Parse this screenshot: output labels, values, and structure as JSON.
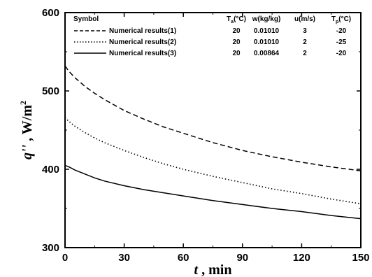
{
  "chart_data": {
    "type": "line",
    "xlabel": {
      "symbol": "t",
      "unit": " , min"
    },
    "ylabel": {
      "symbol": "q''",
      "unit": " , W/m",
      "sup": "2"
    },
    "xlim": [
      0,
      150
    ],
    "ylim": [
      300,
      600
    ],
    "xticks": [
      0,
      30,
      60,
      90,
      120,
      150
    ],
    "yticks": [
      300,
      400,
      500,
      600
    ],
    "grid": false,
    "legend_placement": "top",
    "legend_headers": {
      "symbol": "Symbol",
      "ta": {
        "base": "T",
        "sub": "a",
        "tail": "(°C)"
      },
      "w": "w(kg/kg)",
      "u": "u(m/s)",
      "tp": {
        "base": "T",
        "sub": "p",
        "tail": "(°C)"
      }
    },
    "series": [
      {
        "name": "Numerical results(1)",
        "style": "dashed",
        "params": {
          "ta": "20",
          "w": "0.01010",
          "u": "3",
          "tp": "-20"
        },
        "x": [
          0,
          2,
          5,
          10,
          15,
          20,
          30,
          40,
          50,
          60,
          75,
          90,
          105,
          120,
          135,
          150
        ],
        "y": [
          532,
          525,
          517,
          506,
          497,
          489,
          475,
          464,
          454,
          446,
          434,
          424,
          416,
          409,
          403,
          398
        ]
      },
      {
        "name": "Numerical results(2)",
        "style": "dotted",
        "params": {
          "ta": "20",
          "w": "0.01010",
          "u": "2",
          "tp": "-25"
        },
        "x": [
          0,
          2,
          5,
          10,
          15,
          20,
          30,
          40,
          50,
          60,
          75,
          90,
          105,
          120,
          135,
          150
        ],
        "y": [
          466,
          461,
          455,
          447,
          440,
          434,
          424,
          415,
          407,
          400,
          391,
          383,
          375,
          369,
          362,
          356
        ]
      },
      {
        "name": "Numerical results(3)",
        "style": "solid",
        "params": {
          "ta": "20",
          "w": "0.00864",
          "u": "2",
          "tp": "-20"
        },
        "x": [
          0,
          2,
          5,
          10,
          15,
          20,
          30,
          40,
          50,
          60,
          75,
          90,
          105,
          120,
          135,
          150
        ],
        "y": [
          405,
          403,
          399,
          394,
          389,
          385,
          379,
          374,
          370,
          366,
          360,
          355,
          350,
          346,
          341,
          337
        ]
      }
    ]
  }
}
